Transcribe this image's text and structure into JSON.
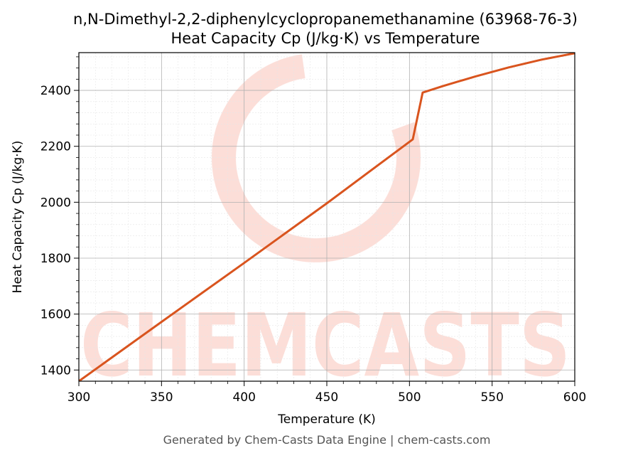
{
  "chart_data": {
    "type": "line",
    "title": "n,N-Dimethyl-2,2-diphenylcyclopropanemethanamine (63968-76-3)",
    "subtitle": "Heat Capacity Cp (J/kg·K) vs Temperature",
    "xlabel": "Temperature (K)",
    "ylabel": "Heat Capacity Cp (J/kg·K)",
    "xlim": [
      300,
      600
    ],
    "ylim": [
      1360,
      2535
    ],
    "xticks": [
      300,
      350,
      400,
      450,
      500,
      550,
      600
    ],
    "yticks": [
      1400,
      1600,
      1800,
      2000,
      2200,
      2400
    ],
    "grid": true,
    "series": [
      {
        "color": "#d9541e",
        "x": [
          300,
          350,
          400,
          450,
          502,
          508,
          520,
          540,
          560,
          580,
          600
        ],
        "y": [
          1360,
          1572,
          1783,
          1996,
          2225,
          2392,
          2415,
          2450,
          2482,
          2510,
          2533
        ]
      }
    ]
  },
  "watermark": {
    "text": "CHEMCASTS",
    "color": "#fbd3cb"
  },
  "footer": "Generated by Chem-Casts Data Engine | chem-casts.com"
}
